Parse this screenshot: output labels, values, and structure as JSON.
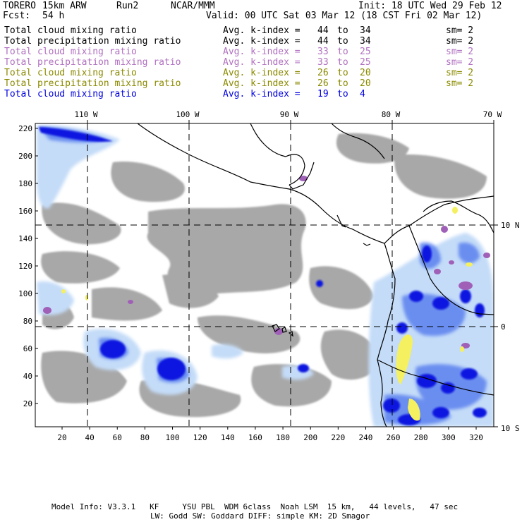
{
  "header": {
    "model": "TORERO",
    "resolution": "15km ARW",
    "run": "Run2",
    "org": "NCAR/MMM",
    "init": "Init: 18 UTC Wed 29 Feb 12",
    "fcst_label": "Fcst:",
    "fcst_value": "54 h",
    "valid": "Valid: 00 UTC Sat 03 Mar 12 (18 CST Fri 02 Mar 12)"
  },
  "legend": [
    {
      "field": "Total cloud mixing ratio",
      "avg_label": "Avg. k-index =",
      "from": "44",
      "to_word": "to",
      "to": "34",
      "sm": "sm= 2",
      "color": "#000000"
    },
    {
      "field": "Total precipitation mixing ratio",
      "avg_label": "Avg. k-index =",
      "from": "44",
      "to_word": "to",
      "to": "34",
      "sm": "sm= 2",
      "color": "#000000"
    },
    {
      "field": "Total cloud mixing ratio",
      "avg_label": "Avg. k-index =",
      "from": "33",
      "to_word": "to",
      "to": "25",
      "sm": "sm= 2",
      "color": "#b070c0"
    },
    {
      "field": "Total precipitation mixing ratio",
      "avg_label": "Avg. k-index =",
      "from": "33",
      "to_word": "to",
      "to": "25",
      "sm": "sm= 2",
      "color": "#b070c0"
    },
    {
      "field": "Total cloud mixing ratio",
      "avg_label": "Avg. k-index =",
      "from": "26",
      "to_word": "to",
      "to": "20",
      "sm": "sm= 2",
      "color": "#8a8a00"
    },
    {
      "field": "Total precipitation mixing ratio",
      "avg_label": "Avg. k-index =",
      "from": "26",
      "to_word": "to",
      "to": "20",
      "sm": "sm= 2",
      "color": "#8a8a00"
    },
    {
      "field": "Total cloud mixing ratio",
      "avg_label": "Avg. k-index =",
      "from": "19",
      "to_word": "to",
      "to": "4",
      "sm": "",
      "color": "#0000e0"
    }
  ],
  "map": {
    "lon_labels": [
      "110 W",
      "100 W",
      "90 W",
      "80 W",
      "70 W"
    ],
    "lat_labels": [
      "10 N",
      "0",
      "10 S"
    ],
    "y_ticks": [
      "220",
      "200",
      "180",
      "160",
      "140",
      "120",
      "100",
      "80",
      "60",
      "40",
      "20"
    ],
    "x_ticks": [
      "20",
      "40",
      "60",
      "80",
      "100",
      "120",
      "140",
      "160",
      "180",
      "200",
      "220",
      "240",
      "260",
      "280",
      "300",
      "320"
    ],
    "colors": {
      "cloud_gray": "#a8a8a8",
      "light_blue": "#c4dcf8",
      "mid_blue": "#6a8ef0",
      "deep_blue": "#0a14e0",
      "purple": "#a060b8",
      "yellow": "#f4f060"
    }
  },
  "footer": {
    "line1": "Model Info: V3.3.1   KF     YSU PBL  WDM 6class  Noah LSM  15 km,   44 levels,   47 sec",
    "line2": "LW: Godd SW: Goddard DIFF: simple KM: 2D Smagor"
  }
}
